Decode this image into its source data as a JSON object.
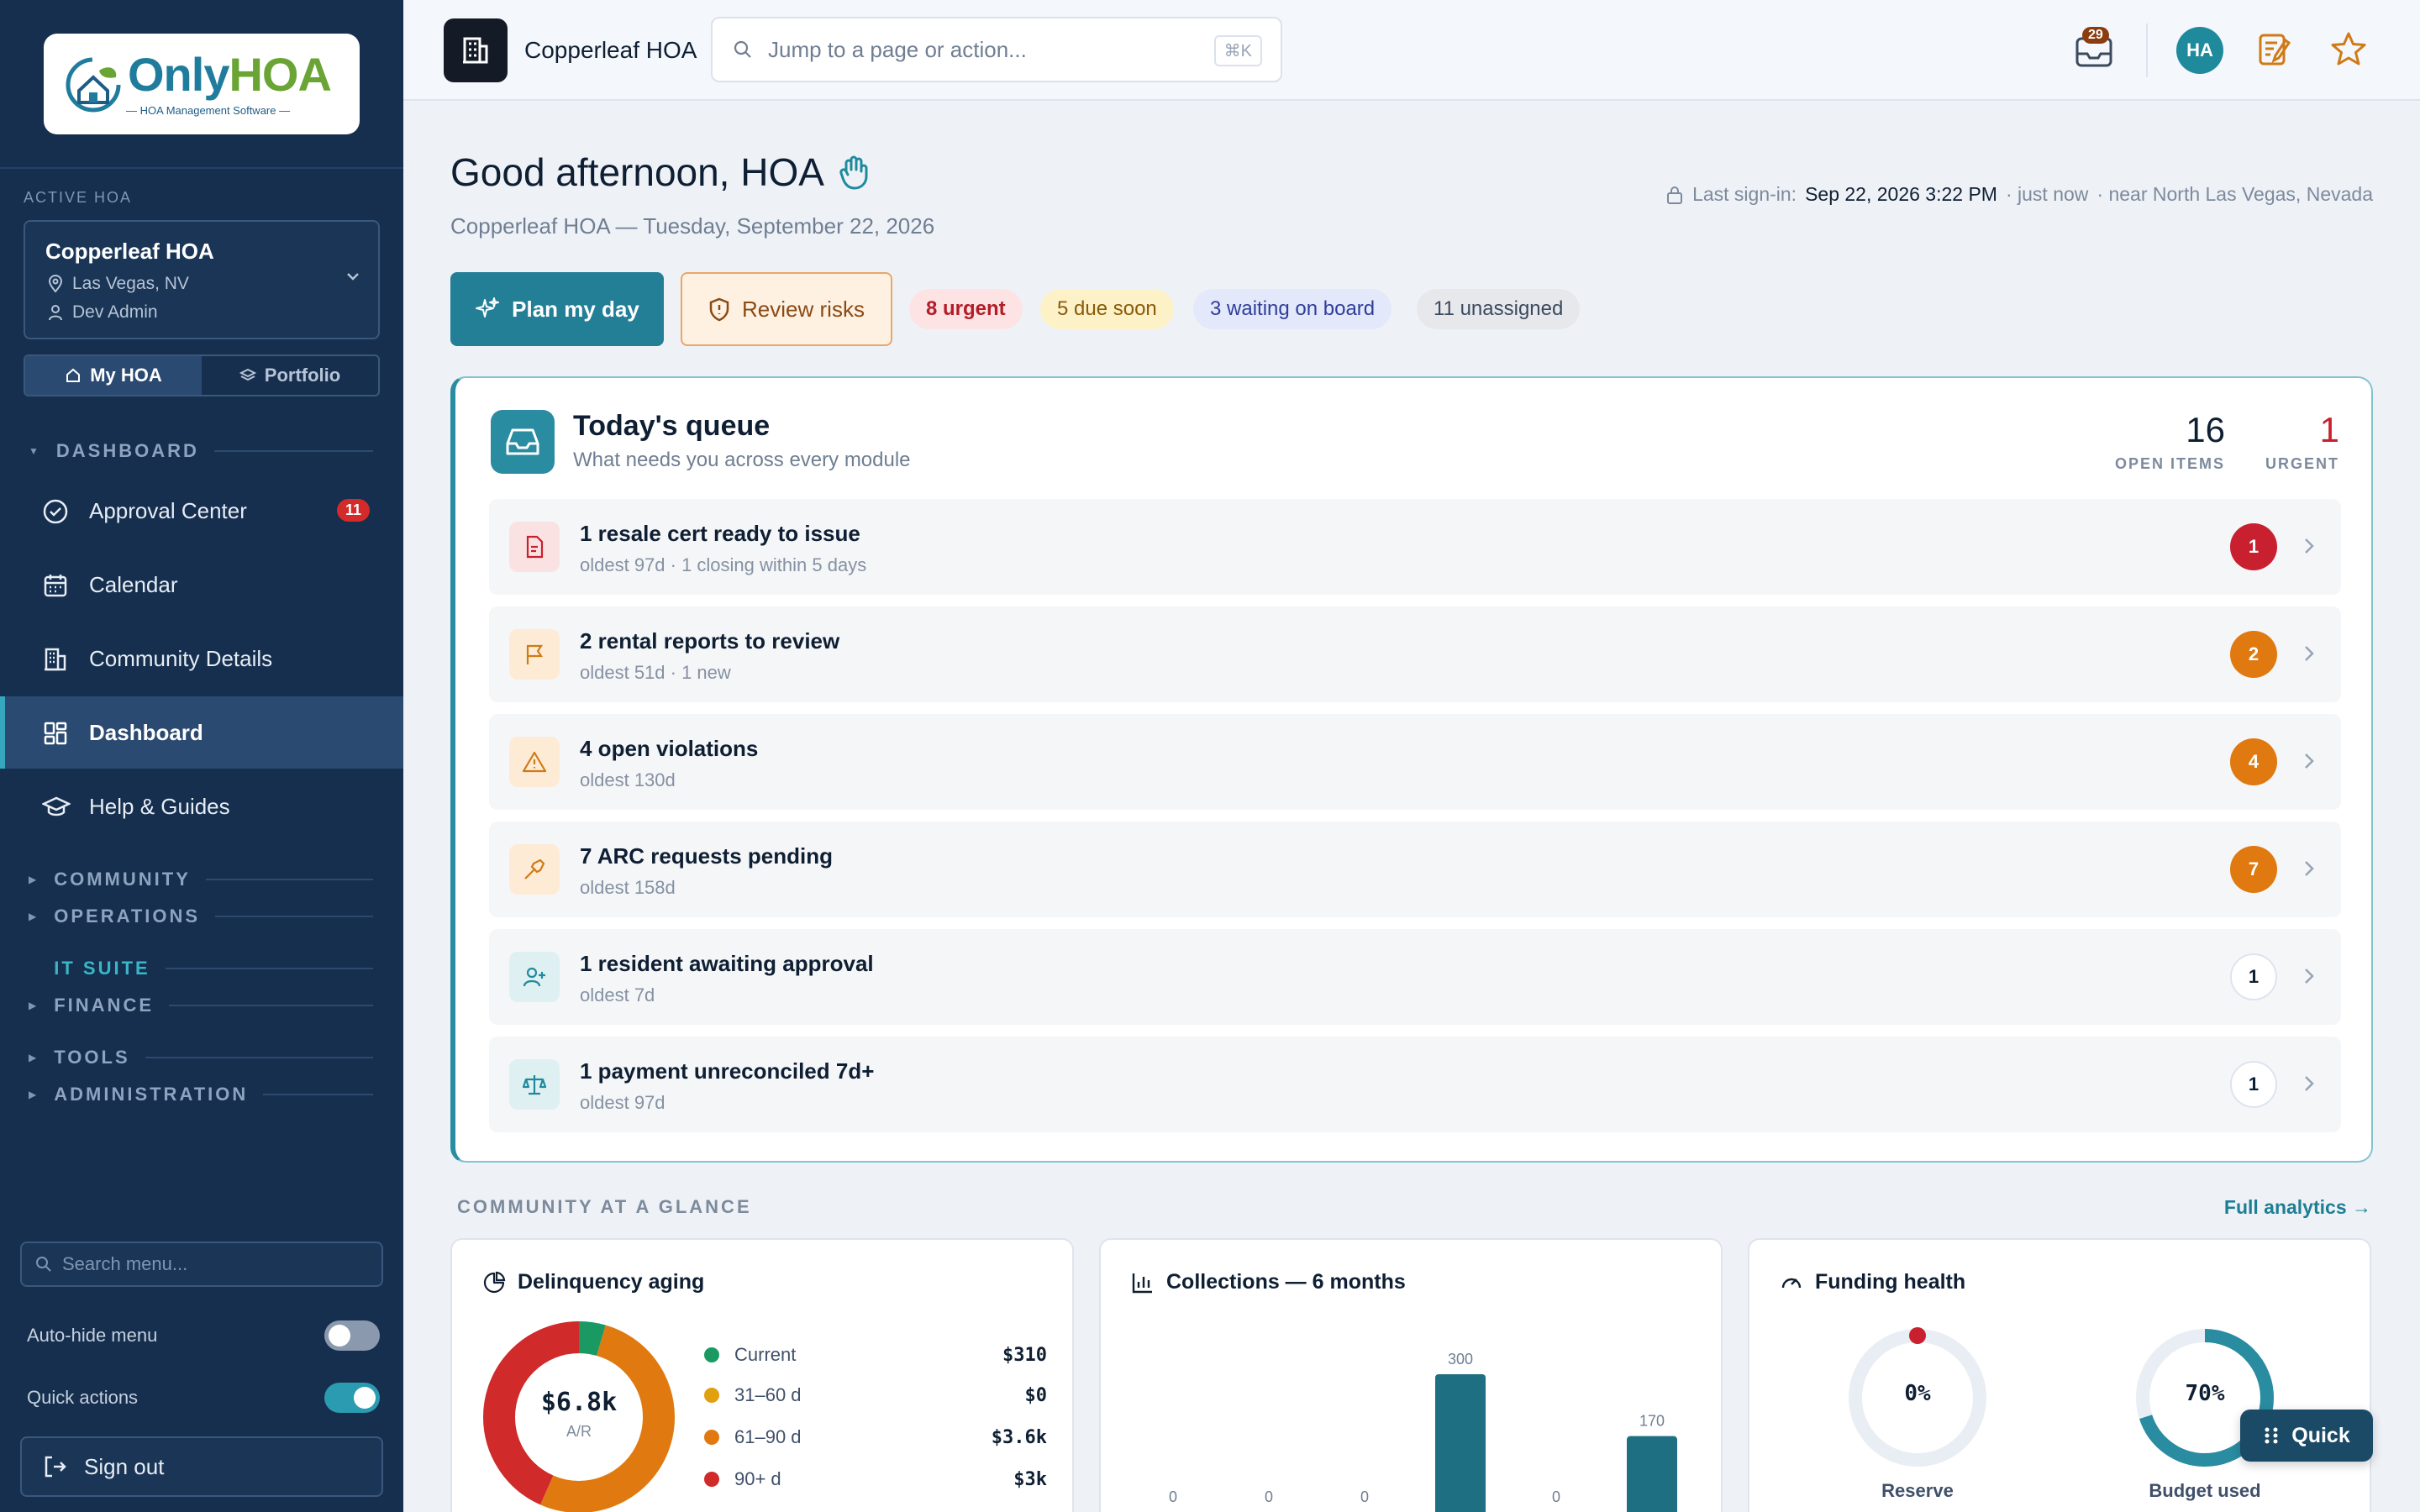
{
  "sidebar": {
    "logo": {
      "brand_a": "Only",
      "brand_b": "HOA",
      "tagline": "HOA Management Software"
    },
    "active_label": "ACTIVE HOA",
    "hoa": {
      "name": "Copperleaf HOA",
      "location": "Las Vegas, NV",
      "user": "Dev Admin"
    },
    "scope": {
      "my_hoa": "My HOA",
      "portfolio": "Portfolio"
    },
    "sections": {
      "dashboard": "DASHBOARD",
      "community": "COMMUNITY",
      "operations": "OPERATIONS",
      "it_suite": "IT SUITE",
      "finance": "FINANCE",
      "tools": "TOOLS",
      "administration": "ADMINISTRATION"
    },
    "items": [
      {
        "label": "Approval Center",
        "badge": "11",
        "icon": "check-circle-icon"
      },
      {
        "label": "Calendar",
        "icon": "calendar-icon"
      },
      {
        "label": "Community Details",
        "icon": "building-icon"
      },
      {
        "label": "Dashboard",
        "icon": "grid-icon",
        "selected": true
      },
      {
        "label": "Help & Guides",
        "icon": "graduation-cap-icon"
      }
    ],
    "search_placeholder": "Search menu...",
    "auto_hide": {
      "label": "Auto-hide menu",
      "on": false
    },
    "quick_actions": {
      "label": "Quick actions",
      "on": true
    },
    "sign_out": "Sign out"
  },
  "topbar": {
    "org": "Copperleaf HOA",
    "search_placeholder": "Jump to a page or action...",
    "shortcut": "⌘K",
    "inbox_count": "29",
    "avatar": "HA"
  },
  "header": {
    "greeting": "Good afternoon, HOA",
    "subline": "Copperleaf HOA — Tuesday, September 22, 2026",
    "signin_label": "Last sign-in:",
    "signin_time": "Sep 22, 2026 3:22 PM",
    "signin_rel": "· just now",
    "signin_loc": "· near North Las Vegas, Nevada"
  },
  "actions": {
    "plan": "Plan my day",
    "risks": "Review risks"
  },
  "chips": {
    "urgent": "8 urgent",
    "due": "5 due soon",
    "board": "3 waiting on board",
    "unassigned": "11 unassigned"
  },
  "colors": {
    "accent": "#237f96",
    "navy": "#162f4e",
    "urgent": "#c8202e",
    "warning": "#e07a10"
  },
  "queue": {
    "title": "Today's queue",
    "subtitle": "What needs you across every module",
    "open_items": "16",
    "open_label": "OPEN ITEMS",
    "urgent": "1",
    "urgent_label": "URGENT",
    "rows": [
      {
        "title": "1 resale cert ready to issue",
        "sub": "oldest 97d · 1 closing within 5 days",
        "count": "1",
        "icon": "document-icon"
      },
      {
        "title": "2 rental reports to review",
        "sub": "oldest 51d · 1 new",
        "count": "2",
        "icon": "flag-icon"
      },
      {
        "title": "4 open violations",
        "sub": "oldest 130d",
        "count": "4",
        "icon": "warning-icon"
      },
      {
        "title": "7 ARC requests pending",
        "sub": "oldest 158d",
        "count": "7",
        "icon": "hammer-icon"
      },
      {
        "title": "1 resident awaiting approval",
        "sub": "oldest 7d",
        "count": "1",
        "icon": "user-plus-icon"
      },
      {
        "title": "1 payment unreconciled 7d+",
        "sub": "oldest 97d",
        "count": "1",
        "icon": "scale-icon"
      }
    ]
  },
  "glance": {
    "title": "COMMUNITY AT A GLANCE",
    "link": "Full analytics →"
  },
  "delinquency": {
    "title": "Delinquency aging",
    "total": "$6.8k",
    "total_label": "A/R",
    "legend": [
      {
        "label": "Current",
        "value": "$310",
        "color": "#1a9a62"
      },
      {
        "label": "31–60 d",
        "value": "$0",
        "color": "#e0a010"
      },
      {
        "label": "61–90 d",
        "value": "$3.6k",
        "color": "#e07a10"
      },
      {
        "label": "90+ d",
        "value": "$3k",
        "color": "#d02a2a"
      }
    ]
  },
  "collections": {
    "title": "Collections — 6 months"
  },
  "funding": {
    "title": "Funding health",
    "reserve": {
      "label": "Reserve",
      "value": "0%",
      "fraction": 0
    },
    "budget": {
      "label": "Budget used",
      "value": "70%",
      "fraction": 0.7
    }
  },
  "quick": "Quick",
  "chart_data": {
    "type": "bar",
    "categories": [
      "",
      "",
      "",
      "",
      "",
      ""
    ],
    "values": [
      0,
      0,
      0,
      300,
      0,
      170
    ],
    "title": "Collections — 6 months",
    "xlabel": "",
    "ylabel": "",
    "ylim": [
      0,
      300
    ]
  }
}
